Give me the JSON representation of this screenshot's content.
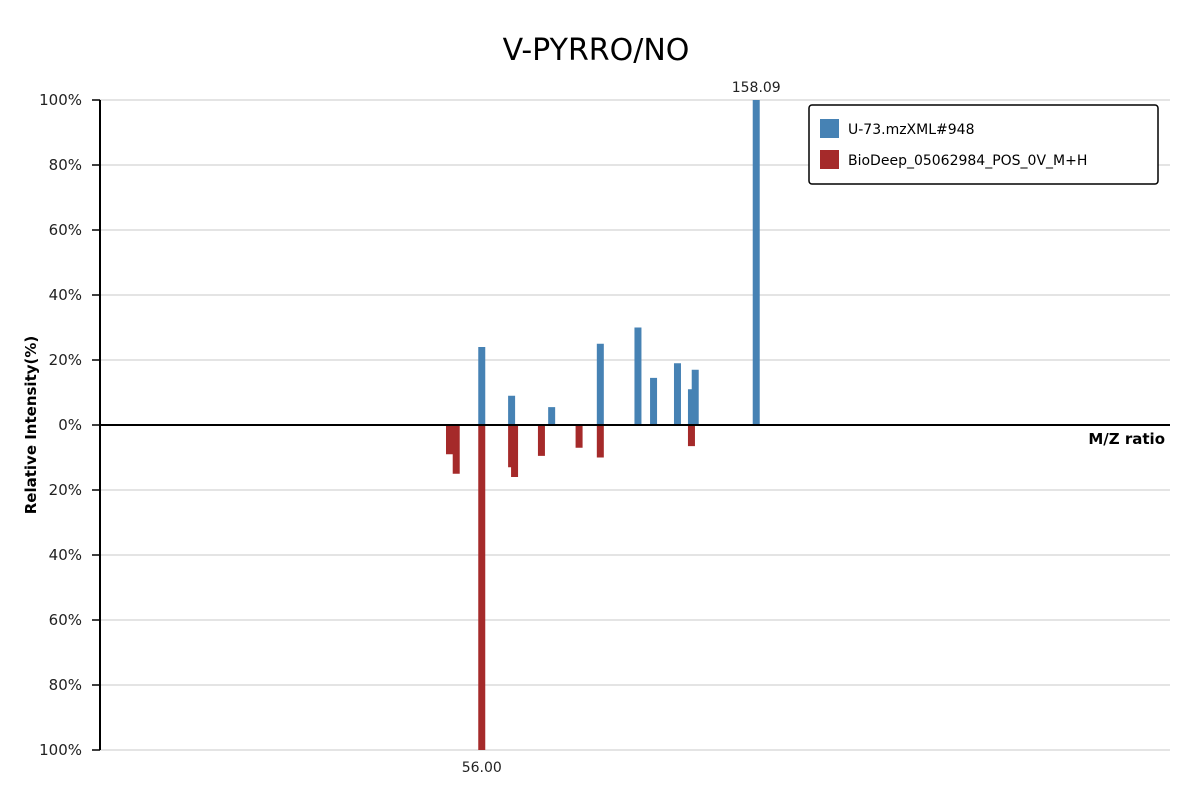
{
  "chart_data": {
    "type": "bar",
    "title": "V-PYRRO/NO",
    "xlabel": "M/Z ratio",
    "ylabel": "Relative Intensity(%)",
    "ylim": [
      -100,
      100
    ],
    "xlim": [
      -86,
      312
    ],
    "y_tick_labels": [
      "100%",
      "80%",
      "60%",
      "40%",
      "20%",
      "0%",
      "20%",
      "40%",
      "60%",
      "80%",
      "100%"
    ],
    "y_tick_values": [
      100,
      80,
      60,
      40,
      20,
      0,
      -20,
      -40,
      -60,
      -80,
      -100
    ],
    "grid": true,
    "legend_position": "top-right",
    "series": [
      {
        "name": "U-73.mzXML#948",
        "color": "#4682B4",
        "points": [
          {
            "mz": 56.0,
            "intensity": 24
          },
          {
            "mz": 67.1,
            "intensity": 9
          },
          {
            "mz": 82.0,
            "intensity": 5.5
          },
          {
            "mz": 100.1,
            "intensity": 25
          },
          {
            "mz": 114.1,
            "intensity": 30
          },
          {
            "mz": 119.9,
            "intensity": 14.5
          },
          {
            "mz": 128.8,
            "intensity": 19
          },
          {
            "mz": 134.0,
            "intensity": 11
          },
          {
            "mz": 135.4,
            "intensity": 17
          },
          {
            "mz": 158.09,
            "intensity": 100
          }
        ]
      },
      {
        "name": "BioDeep_05062984_POS_0V_M+H",
        "color": "#A52A2A",
        "points": [
          {
            "mz": 44.0,
            "intensity": 9
          },
          {
            "mz": 46.5,
            "intensity": 15
          },
          {
            "mz": 56.0,
            "intensity": 100
          },
          {
            "mz": 67.1,
            "intensity": 13
          },
          {
            "mz": 68.2,
            "intensity": 16
          },
          {
            "mz": 78.2,
            "intensity": 9.5
          },
          {
            "mz": 92.2,
            "intensity": 7
          },
          {
            "mz": 100.1,
            "intensity": 10
          },
          {
            "mz": 134.0,
            "intensity": 6.5
          }
        ]
      }
    ],
    "annotations": [
      {
        "text": "158.09",
        "mz": 158.09,
        "series": 0
      },
      {
        "text": "56.00",
        "mz": 56.0,
        "series": 1
      }
    ]
  }
}
